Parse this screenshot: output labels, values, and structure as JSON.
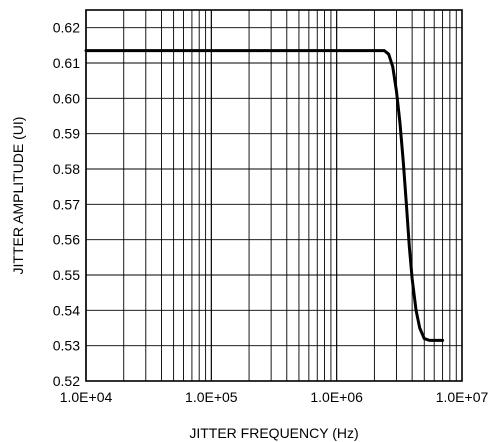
{
  "chart_data": {
    "type": "line",
    "xlabel": "JITTER FREQUENCY (Hz)",
    "ylabel": "JITTER AMPLITUDE (UI)",
    "x_scale": "log",
    "xlim": [
      10000,
      10000000
    ],
    "ylim": [
      0.52,
      0.625
    ],
    "x_tick_values": [
      10000,
      100000,
      1000000,
      10000000
    ],
    "x_tick_labels": [
      "1.0E+04",
      "1.0E+05",
      "1.0E+06",
      "1.0E+07"
    ],
    "y_tick_values": [
      0.52,
      0.53,
      0.54,
      0.55,
      0.56,
      0.57,
      0.58,
      0.59,
      0.6,
      0.61,
      0.62
    ],
    "y_tick_labels": [
      "0.52",
      "0.53",
      "0.54",
      "0.55",
      "0.56",
      "0.57",
      "0.58",
      "0.59",
      "0.60",
      "0.61",
      "0.62"
    ],
    "grid": true,
    "series": [
      {
        "x": [
          10000,
          100000,
          1000000,
          2400000,
          2600000,
          2800000,
          3000000,
          3200000,
          3400000,
          3600000,
          3800000,
          4000000,
          4300000,
          4600000,
          5000000,
          5500000,
          6000000,
          7000000
        ],
        "y": [
          0.6135,
          0.6135,
          0.6135,
          0.6135,
          0.6125,
          0.609,
          0.602,
          0.593,
          0.582,
          0.57,
          0.558,
          0.549,
          0.54,
          0.535,
          0.532,
          0.5315,
          0.5315,
          0.5315
        ],
        "color": "#000000"
      }
    ]
  }
}
